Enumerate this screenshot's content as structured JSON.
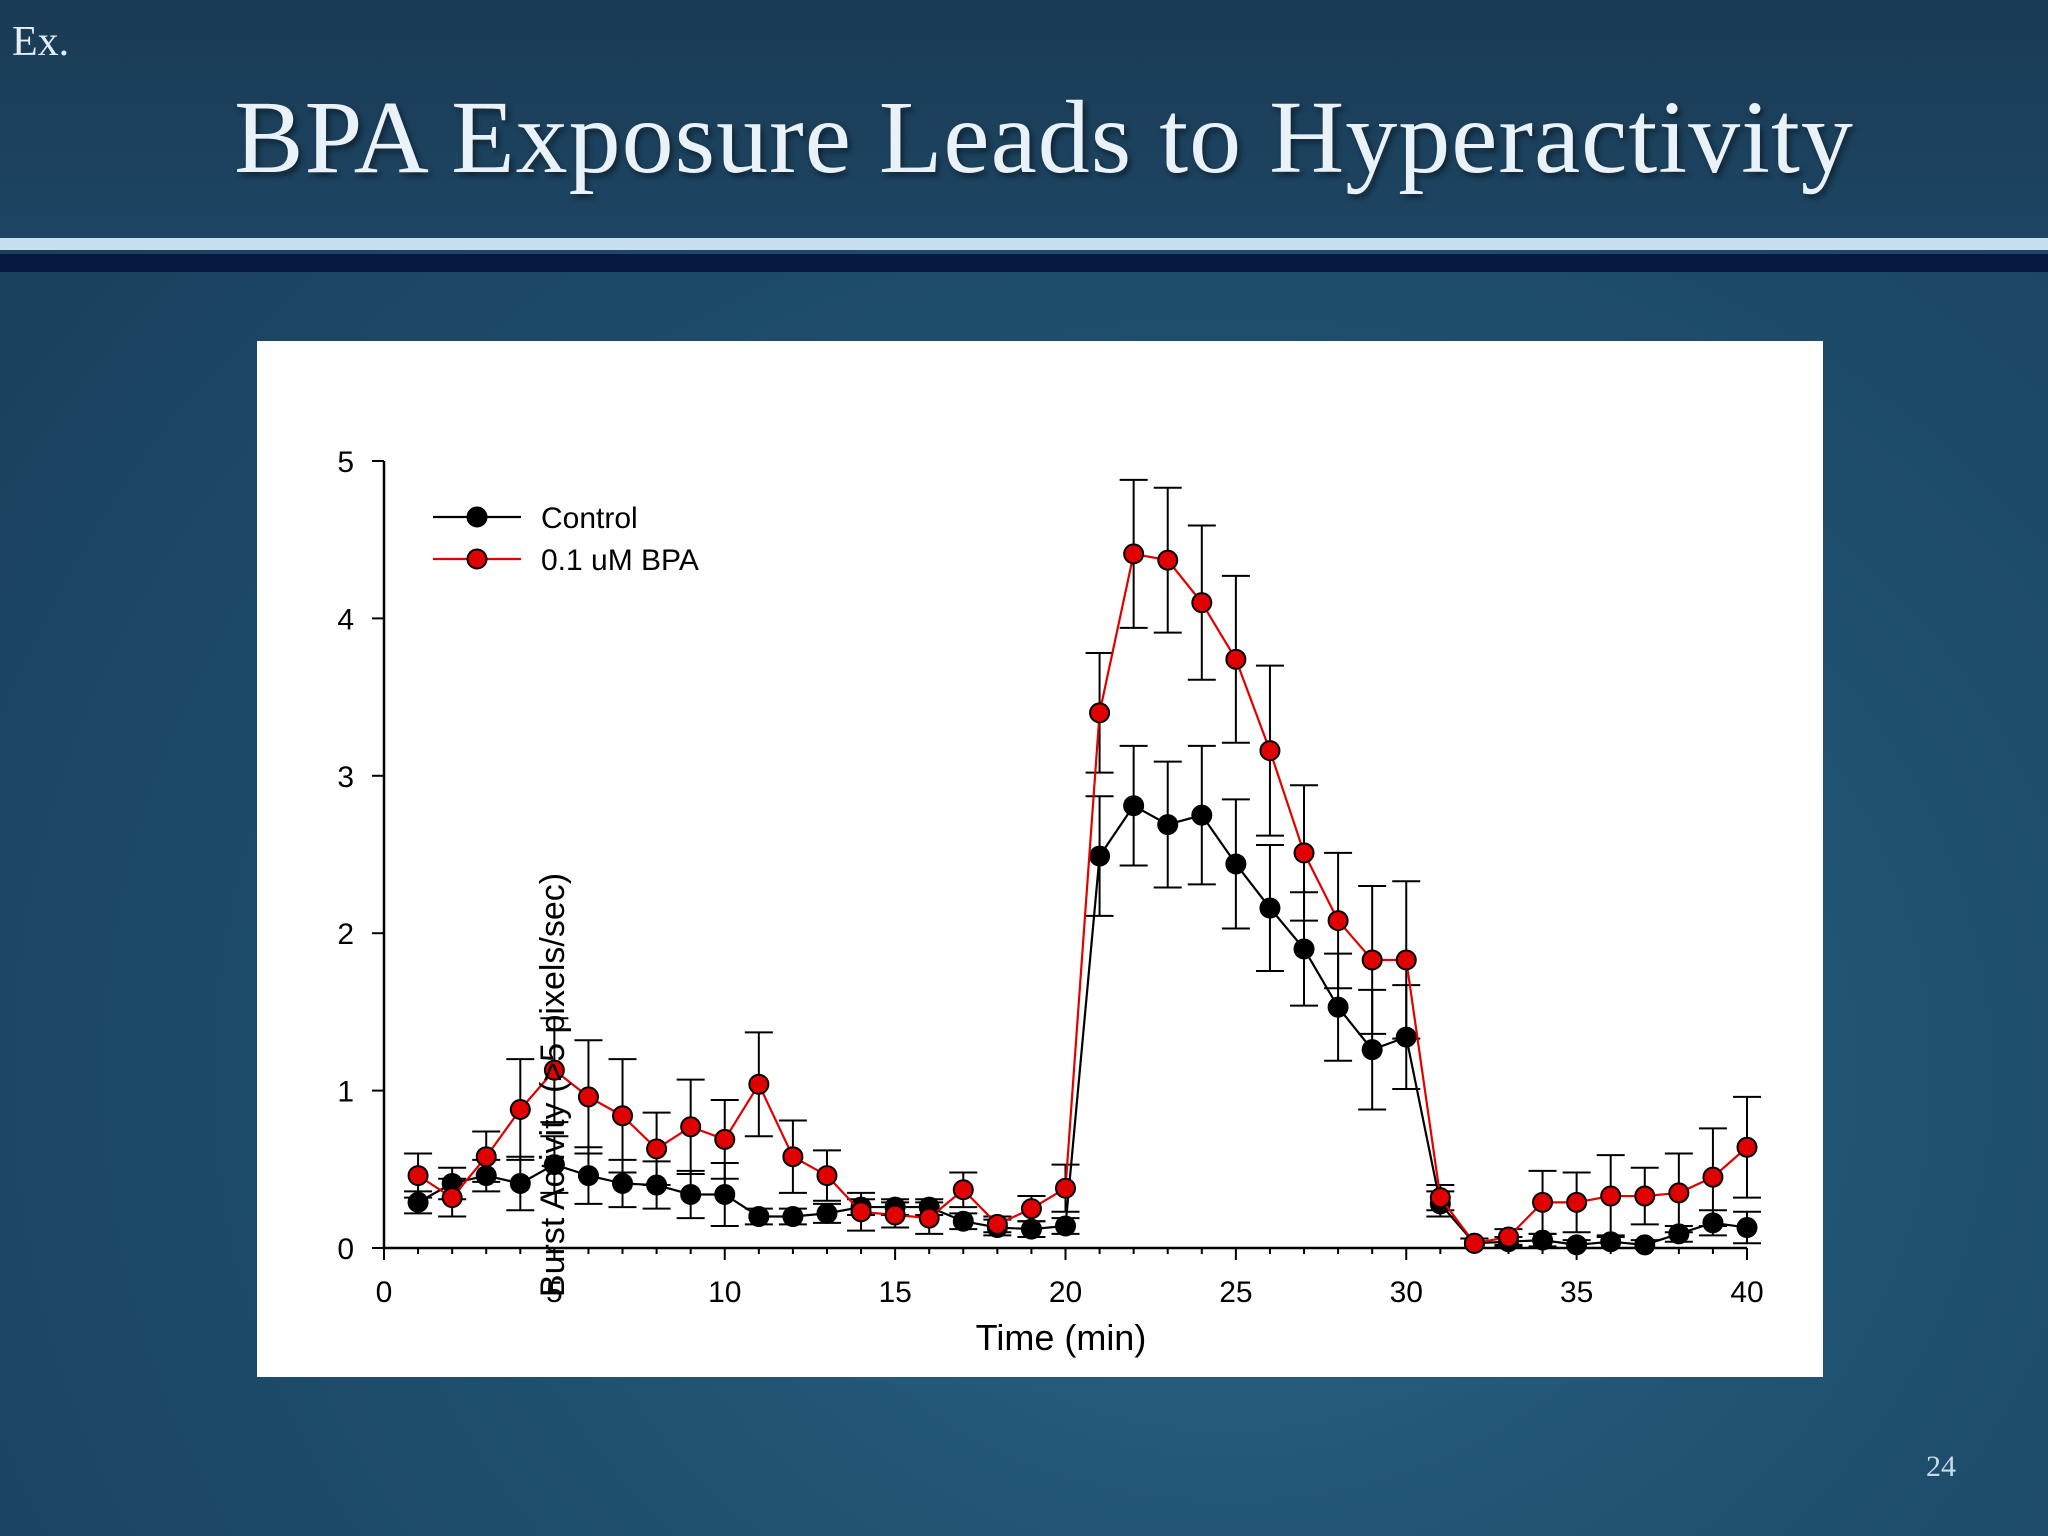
{
  "slide": {
    "corner_label": "Ex.",
    "title": "BPA Exposure Leads to Hyperactivity",
    "page_number": "24"
  },
  "colors": {
    "header_bg": "#1b405d",
    "rule_light": "#c8dff0",
    "rule_dark": "#06183f",
    "control": "#000000",
    "bpa": "#e00000"
  },
  "chart_data": {
    "type": "line",
    "title": "",
    "xlabel": "Time (min)",
    "ylabel": "Burst Activity (>5 pixels/sec)",
    "xlim": [
      0,
      40
    ],
    "ylim": [
      0,
      5
    ],
    "xticks": [
      0,
      5,
      10,
      15,
      20,
      25,
      30,
      35,
      40
    ],
    "yticks": [
      0,
      1,
      2,
      3,
      4,
      5
    ],
    "grid": false,
    "legend_position": "top-left",
    "x": [
      1,
      2,
      3,
      4,
      5,
      6,
      7,
      8,
      9,
      10,
      11,
      12,
      13,
      14,
      15,
      16,
      17,
      18,
      19,
      20,
      21,
      22,
      23,
      24,
      25,
      26,
      27,
      28,
      29,
      30,
      31,
      32,
      33,
      34,
      35,
      36,
      37,
      38,
      39,
      40
    ],
    "series": [
      {
        "name": "Control",
        "color": "#000000",
        "values": [
          0.29,
          0.41,
          0.46,
          0.41,
          0.53,
          0.46,
          0.41,
          0.4,
          0.34,
          0.34,
          0.2,
          0.2,
          0.22,
          0.26,
          0.26,
          0.26,
          0.17,
          0.13,
          0.12,
          0.14,
          2.49,
          2.81,
          2.69,
          2.75,
          2.44,
          2.16,
          1.9,
          1.53,
          1.26,
          1.34,
          0.28,
          0.03,
          0.04,
          0.05,
          0.02,
          0.04,
          0.02,
          0.09,
          0.16,
          0.13
        ],
        "error": [
          0.07,
          0.1,
          0.1,
          0.17,
          0.18,
          0.18,
          0.15,
          0.15,
          0.15,
          0.2,
          0.05,
          0.05,
          0.06,
          0.05,
          0.05,
          0.05,
          0.05,
          0.05,
          0.05,
          0.05,
          0.38,
          0.38,
          0.4,
          0.44,
          0.41,
          0.4,
          0.36,
          0.34,
          0.38,
          0.33,
          0.08,
          0.03,
          0.03,
          0.04,
          0.03,
          0.04,
          0.03,
          0.05,
          0.08,
          0.1
        ]
      },
      {
        "name": "0.1 uM BPA",
        "color": "#e00000",
        "values": [
          0.46,
          0.32,
          0.58,
          0.88,
          1.13,
          0.96,
          0.84,
          0.63,
          0.77,
          0.69,
          1.04,
          0.58,
          0.46,
          0.23,
          0.21,
          0.19,
          0.37,
          0.15,
          0.25,
          0.38,
          3.4,
          4.41,
          4.37,
          4.1,
          3.74,
          3.16,
          2.51,
          2.08,
          1.83,
          1.83,
          0.32,
          0.03,
          0.07,
          0.29,
          0.29,
          0.33,
          0.33,
          0.35,
          0.45,
          0.64
        ],
        "error": [
          0.14,
          0.12,
          0.16,
          0.32,
          0.33,
          0.36,
          0.36,
          0.23,
          0.3,
          0.25,
          0.33,
          0.23,
          0.16,
          0.12,
          0.08,
          0.1,
          0.11,
          0.05,
          0.08,
          0.15,
          0.38,
          0.47,
          0.46,
          0.49,
          0.53,
          0.54,
          0.43,
          0.43,
          0.47,
          0.5,
          0.08,
          0.03,
          0.05,
          0.2,
          0.19,
          0.26,
          0.18,
          0.25,
          0.31,
          0.32
        ]
      }
    ]
  }
}
